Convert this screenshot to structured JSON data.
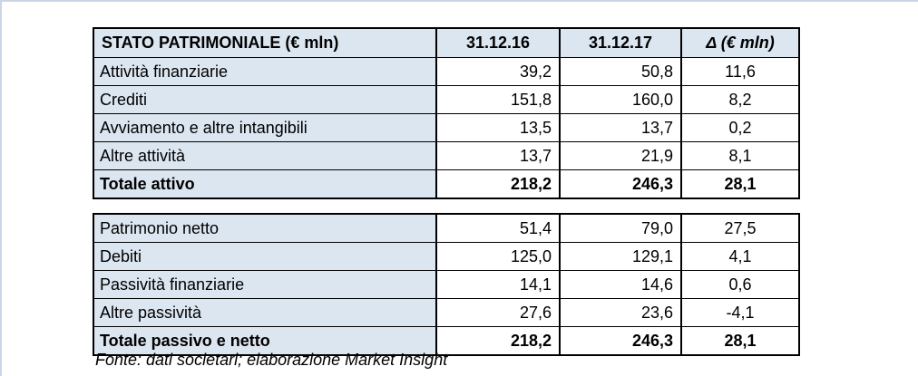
{
  "page": {
    "background": "#ffffff",
    "edge_line_color": "#ccd4e6",
    "cell_fill_color": "#dce6f1",
    "border_color": "#000000"
  },
  "table": {
    "header": {
      "title": "STATO PATRIMONIALE (€ mln)",
      "col_2016": "31.12.16",
      "col_2017": "31.12.17",
      "col_delta": "Δ (€ mln)"
    },
    "sections": [
      {
        "name": "attivo",
        "rows": [
          {
            "label": "Attività finanziarie",
            "v2016": "39,2",
            "v2017": "50,8",
            "delta": "11,6"
          },
          {
            "label": "Crediti",
            "v2016": "151,8",
            "v2017": "160,0",
            "delta": "8,2"
          },
          {
            "label": "Avviamento e altre intangibili",
            "v2016": "13,5",
            "v2017": "13,7",
            "delta": "0,2"
          },
          {
            "label": "Altre attività",
            "v2016": "13,7",
            "v2017": "21,9",
            "delta": "8,1"
          },
          {
            "label": "Totale attivo",
            "v2016": "218,2",
            "v2017": "246,3",
            "delta": "28,1"
          }
        ]
      },
      {
        "name": "passivo",
        "rows": [
          {
            "label": "Patrimonio netto",
            "v2016": "51,4",
            "v2017": "79,0",
            "delta": "27,5"
          },
          {
            "label": "Debiti",
            "v2016": "125,0",
            "v2017": "129,1",
            "delta": "4,1"
          },
          {
            "label": "Passività finanziarie",
            "v2016": "14,1",
            "v2017": "14,6",
            "delta": "0,6"
          },
          {
            "label": "Altre passività",
            "v2016": "27,6",
            "v2017": "23,6",
            "delta": "-4,1"
          },
          {
            "label": "Totale passivo e netto",
            "v2016": "218,2",
            "v2017": "246,3",
            "delta": "28,1"
          }
        ]
      }
    ]
  },
  "footer": {
    "source_note": "Fonte: dati societari; elaborazione Market Insight"
  }
}
